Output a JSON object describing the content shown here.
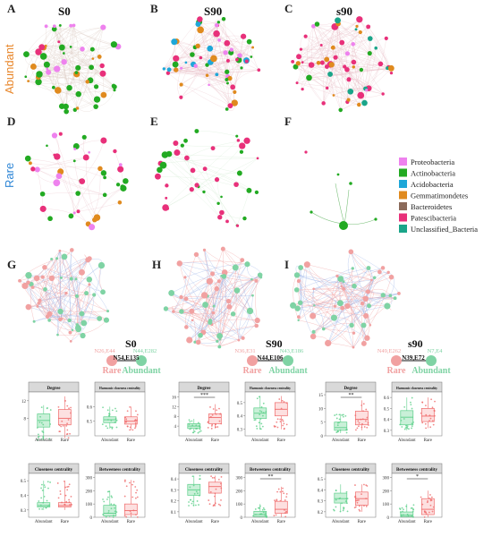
{
  "panel_letters": [
    "A",
    "B",
    "C",
    "D",
    "E",
    "F",
    "G",
    "H",
    "I"
  ],
  "top": {
    "sample_titles": [
      "S0",
      "S90",
      "s90"
    ],
    "row_labels": {
      "abundant": "Abundant",
      "rare": "Rare"
    }
  },
  "legend": {
    "items": [
      {
        "label": "Proteobacteria",
        "color": "#ee82ee"
      },
      {
        "label": "Actinobacteria",
        "color": "#22aa22"
      },
      {
        "label": "Acidobacteria",
        "color": "#1ea7d8"
      },
      {
        "label": "Gemmatimondetes",
        "color": "#e08a1e"
      },
      {
        "label": "Bacteroidetes",
        "color": "#8b6a5a"
      },
      {
        "label": "Patescibacteria",
        "color": "#e8307a"
      },
      {
        "label": "Unclassified_Bacteria",
        "color": "#1aa589"
      }
    ]
  },
  "colors": {
    "rare": "#f1a1a1",
    "abundant": "#7fd3a4",
    "rare_dark": "#e56565",
    "abundant_dark": "#3ebb72"
  },
  "bottom": [
    {
      "title": "S0",
      "rare_code": "N26,E44",
      "abundant_code": "N44,E282",
      "link": "N54,E135",
      "rare": "Rare",
      "abundant": "Abundant"
    },
    {
      "title": "S90",
      "rare_code": "N36,E31",
      "abundant_code": "N43,E186",
      "link": "N44,E106",
      "rare": "Rare",
      "abundant": "Abundant"
    },
    {
      "title": "s90",
      "rare_code": "N49,E262",
      "abundant_code": "N7,E4",
      "link": "N39,E72",
      "rare": "Rare",
      "abundant": "Abundant"
    }
  ],
  "boxplots": {
    "metrics": [
      "Degree",
      "Harmonic closeness centrality",
      "Closeness centrality",
      "Betweeness centrality"
    ],
    "x_labels": [
      "Abundant",
      "Rare"
    ],
    "panels": [
      [
        {
          "ticks": [
            "8",
            "12"
          ],
          "tick_vals": [
            8,
            12
          ],
          "ylim": [
            4,
            14
          ],
          "ab": [
            6,
            7.5,
            9,
            3,
            11
          ],
          "ra": [
            6.5,
            8,
            10,
            3.5,
            13
          ],
          "sig": ""
        },
        {
          "ticks": [
            "0.5",
            "0.6"
          ],
          "tick_vals": [
            0.5,
            0.6
          ],
          "ylim": [
            0.4,
            0.7
          ],
          "ab": [
            0.49,
            0.51,
            0.53,
            0.45,
            0.6
          ],
          "ra": [
            0.48,
            0.5,
            0.53,
            0.44,
            0.6
          ],
          "sig": ""
        },
        {
          "ticks": [
            "0.3",
            "0.4",
            "0.5"
          ],
          "tick_vals": [
            0.3,
            0.4,
            0.5
          ],
          "ylim": [
            0.25,
            0.55
          ],
          "ab": [
            0.32,
            0.33,
            0.35,
            0.3,
            0.5
          ],
          "ra": [
            0.32,
            0.33,
            0.35,
            0.3,
            0.5
          ],
          "sig": ""
        },
        {
          "ticks": [
            "0",
            "100",
            "200",
            "300"
          ],
          "tick_vals": [
            0,
            100,
            200,
            300
          ],
          "ylim": [
            0,
            330
          ],
          "ab": [
            10,
            30,
            90,
            0,
            200
          ],
          "ra": [
            20,
            50,
            100,
            0,
            280
          ],
          "sig": ""
        }
      ],
      [
        {
          "ticks": [
            "4",
            "8",
            "12",
            "16"
          ],
          "tick_vals": [
            4,
            8,
            12,
            16
          ],
          "ylim": [
            0,
            18
          ],
          "ab": [
            3,
            4,
            5,
            1,
            7
          ],
          "ra": [
            5,
            7.5,
            9,
            3,
            13
          ],
          "sig": "***"
        },
        {
          "ticks": [
            "0.3",
            "0.4",
            "0.5"
          ],
          "tick_vals": [
            0.3,
            0.4,
            0.5
          ],
          "ylim": [
            0.25,
            0.58
          ],
          "ab": [
            0.38,
            0.42,
            0.46,
            0.3,
            0.55
          ],
          "ra": [
            0.4,
            0.45,
            0.5,
            0.3,
            0.55
          ],
          "sig": ""
        },
        {
          "ticks": [
            "0.1",
            "0.2",
            "0.3",
            "0.4"
          ],
          "tick_vals": [
            0.1,
            0.2,
            0.3,
            0.4
          ],
          "ylim": [
            0.05,
            0.45
          ],
          "ab": [
            0.25,
            0.3,
            0.35,
            0.15,
            0.43
          ],
          "ra": [
            0.27,
            0.33,
            0.37,
            0.15,
            0.43
          ],
          "sig": ""
        },
        {
          "ticks": [
            "0",
            "100",
            "200",
            "300"
          ],
          "tick_vals": [
            0,
            100,
            200,
            300
          ],
          "ylim": [
            0,
            330
          ],
          "ab": [
            5,
            20,
            45,
            0,
            100
          ],
          "ra": [
            30,
            60,
            120,
            0,
            230
          ],
          "sig": "**"
        }
      ],
      [
        {
          "ticks": [
            "0",
            "5",
            "10",
            "15"
          ],
          "tick_vals": [
            0,
            5,
            10,
            15
          ],
          "ylim": [
            0,
            16
          ],
          "ab": [
            2,
            3,
            5,
            1,
            8
          ],
          "ra": [
            4,
            6,
            9,
            2,
            13
          ],
          "sig": "**"
        },
        {
          "ticks": [
            "0.3",
            "0.4",
            "0.5",
            "0.6"
          ],
          "tick_vals": [
            0.3,
            0.4,
            0.5,
            0.6
          ],
          "ylim": [
            0.25,
            0.65
          ],
          "ab": [
            0.35,
            0.42,
            0.48,
            0.3,
            0.6
          ],
          "ra": [
            0.38,
            0.43,
            0.5,
            0.32,
            0.6
          ],
          "sig": ""
        },
        {
          "ticks": [
            "0.2",
            "0.3",
            "0.4",
            "0.5"
          ],
          "tick_vals": [
            0.2,
            0.3,
            0.4,
            0.5
          ],
          "ylim": [
            0.15,
            0.55
          ],
          "ab": [
            0.28,
            0.32,
            0.37,
            0.2,
            0.45
          ],
          "ra": [
            0.26,
            0.32,
            0.38,
            0.2,
            0.45
          ],
          "sig": ""
        },
        {
          "ticks": [
            "0",
            "100",
            "200",
            "300"
          ],
          "tick_vals": [
            0,
            100,
            200,
            300
          ],
          "ylim": [
            0,
            330
          ],
          "ab": [
            5,
            15,
            40,
            0,
            100
          ],
          "ra": [
            20,
            60,
            140,
            0,
            200
          ],
          "sig": "*"
        }
      ]
    ]
  }
}
